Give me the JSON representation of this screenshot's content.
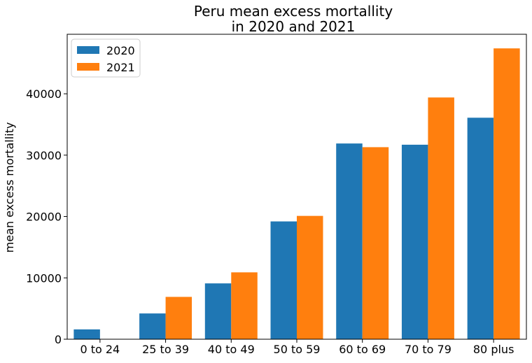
{
  "chart_data": {
    "type": "bar",
    "title_lines": [
      "Peru mean excess mortallity",
      "in 2020 and 2021"
    ],
    "xlabel": "",
    "ylabel": "mean excess mortallity",
    "categories": [
      "0 to 24",
      "25 to 39",
      "40 to 49",
      "50 to 59",
      "60 to 69",
      "70 to 79",
      "80 plus"
    ],
    "series": [
      {
        "name": "2020",
        "color": "#1f77b4",
        "values": [
          1600,
          4200,
          9100,
          19200,
          31900,
          31700,
          36100
        ]
      },
      {
        "name": "2021",
        "color": "#ff7f0e",
        "values": [
          0,
          6900,
          10900,
          20100,
          31300,
          39400,
          47400
        ]
      }
    ],
    "ylim": [
      0,
      49700
    ],
    "yticks": [
      0,
      10000,
      20000,
      30000,
      40000
    ],
    "ytick_labels": [
      "0",
      "10000",
      "20000",
      "30000",
      "40000"
    ],
    "legend_position": "top-left",
    "grid": false
  }
}
